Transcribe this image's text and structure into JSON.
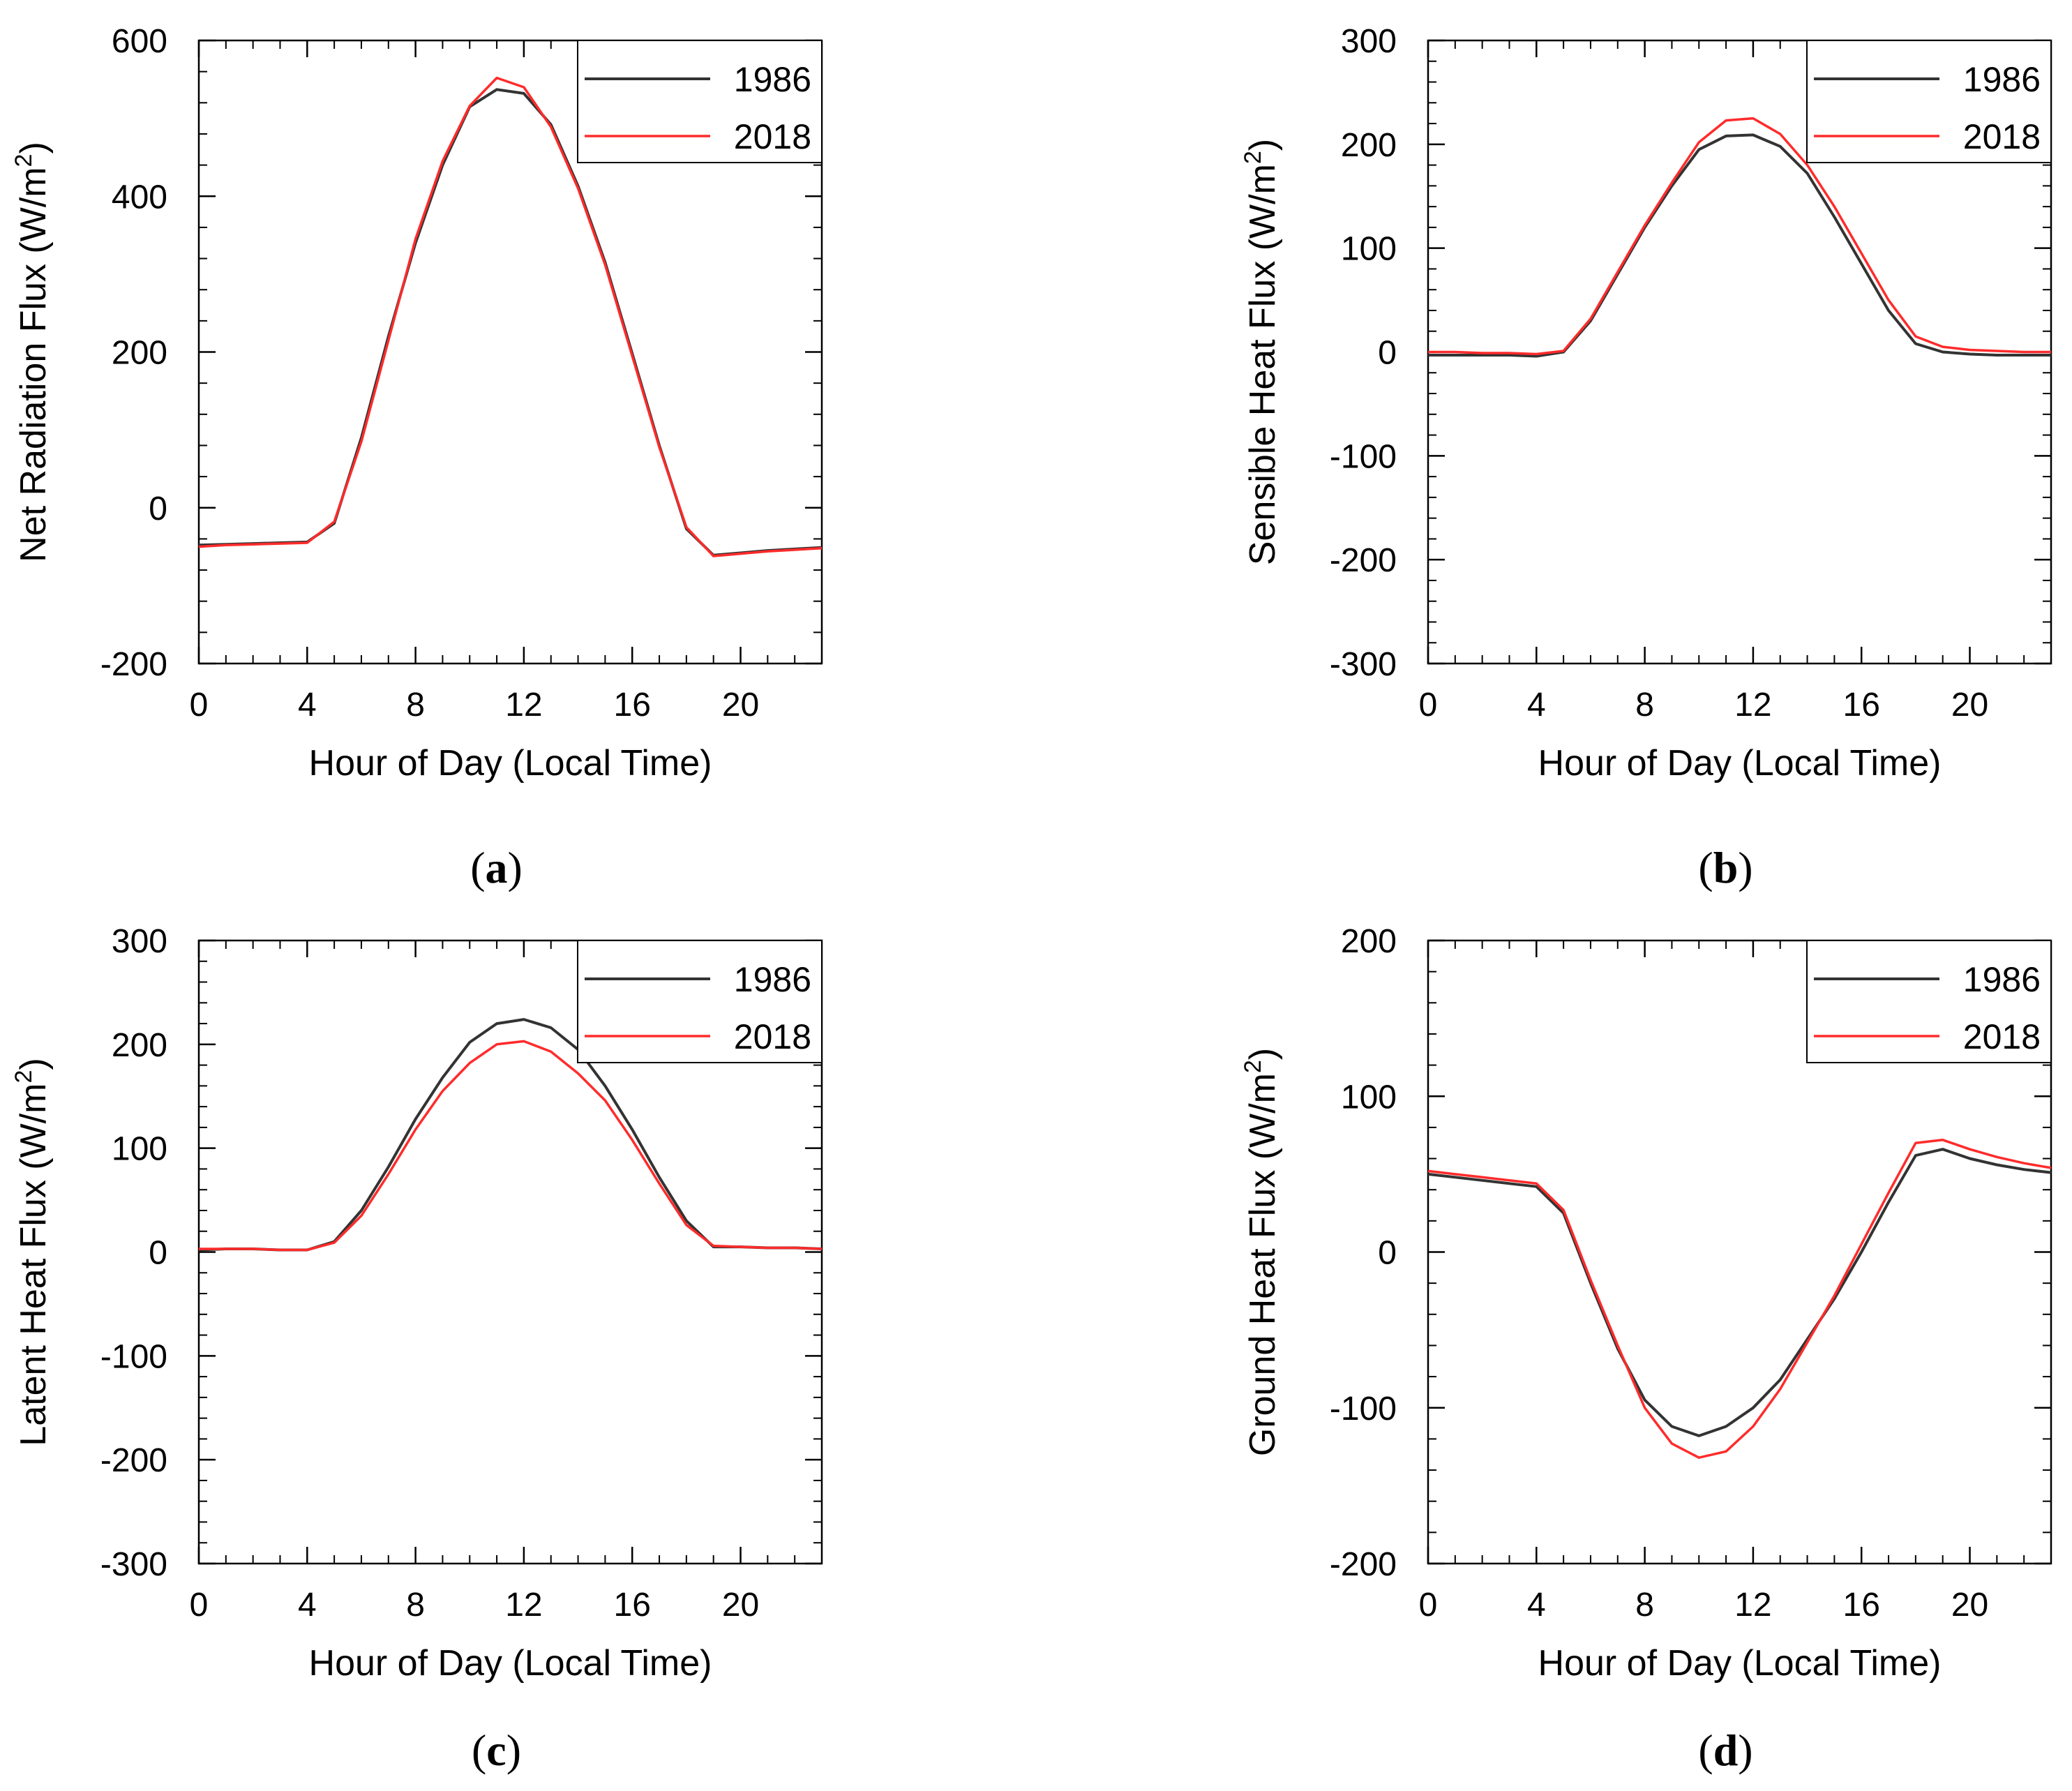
{
  "chart_data": [
    {
      "type": "line",
      "panel_label": "a",
      "title": "",
      "xlabel": "Hour of Day (Local Time)",
      "ylabel_main": "Net Radiation Flux (W/m",
      "ylabel_sup": "2",
      "ylabel_end": ")",
      "xlim": [
        0,
        23
      ],
      "ylim": [
        -200,
        600
      ],
      "xticks": [
        0,
        4,
        8,
        12,
        16,
        20
      ],
      "yticks": [
        -200,
        0,
        200,
        400,
        600
      ],
      "legend_position": "top-right",
      "x": [
        0,
        1,
        2,
        3,
        4,
        5,
        6,
        7,
        8,
        9,
        10,
        11,
        12,
        13,
        14,
        15,
        16,
        17,
        18,
        19,
        20,
        21,
        22,
        23
      ],
      "series": [
        {
          "name": "1986",
          "color": "#333333",
          "values": [
            -48,
            -47,
            -46,
            -45,
            -44,
            -20,
            90,
            220,
            340,
            440,
            515,
            537,
            532,
            492,
            413,
            315,
            198,
            80,
            -27,
            -61,
            -58,
            -55,
            -53,
            -51
          ]
        },
        {
          "name": "2018",
          "color": "#ff2b2b",
          "values": [
            -50,
            -48,
            -47,
            -46,
            -45,
            -18,
            85,
            215,
            345,
            445,
            516,
            552,
            540,
            489,
            410,
            312,
            195,
            78,
            -25,
            -62,
            -59,
            -56,
            -54,
            -52
          ]
        }
      ]
    },
    {
      "type": "line",
      "panel_label": "b",
      "title": "",
      "xlabel": "Hour of Day (Local Time)",
      "ylabel_main": "Sensible Heat Flux (W/m",
      "ylabel_sup": "2",
      "ylabel_end": ")",
      "xlim": [
        0,
        23
      ],
      "ylim": [
        -300,
        300
      ],
      "xticks": [
        0,
        4,
        8,
        12,
        16,
        20
      ],
      "yticks": [
        -300,
        -200,
        -100,
        0,
        100,
        200,
        300
      ],
      "legend_position": "top-right",
      "x": [
        0,
        1,
        2,
        3,
        4,
        5,
        6,
        7,
        8,
        9,
        10,
        11,
        12,
        13,
        14,
        15,
        16,
        17,
        18,
        19,
        20,
        21,
        22,
        23
      ],
      "series": [
        {
          "name": "1986",
          "color": "#333333",
          "values": [
            -3,
            -3,
            -3,
            -3,
            -4,
            0,
            30,
            75,
            120,
            160,
            195,
            208,
            209,
            198,
            172,
            130,
            85,
            40,
            8,
            0,
            -2,
            -3,
            -3,
            -3
          ]
        },
        {
          "name": "2018",
          "color": "#ff2b2b",
          "values": [
            0,
            0,
            -1,
            -1,
            -2,
            1,
            32,
            77,
            122,
            163,
            202,
            223,
            225,
            210,
            180,
            140,
            95,
            50,
            15,
            5,
            2,
            1,
            0,
            0
          ]
        }
      ]
    },
    {
      "type": "line",
      "panel_label": "c",
      "title": "",
      "xlabel": "Hour of Day (Local Time)",
      "ylabel_main": "Latent Heat Flux (W/m",
      "ylabel_sup": "2",
      "ylabel_end": ")",
      "xlim": [
        0,
        23
      ],
      "ylim": [
        -300,
        300
      ],
      "xticks": [
        0,
        4,
        8,
        12,
        16,
        20
      ],
      "yticks": [
        -300,
        -200,
        -100,
        0,
        100,
        200,
        300
      ],
      "legend_position": "top-right",
      "x": [
        0,
        1,
        2,
        3,
        4,
        5,
        6,
        7,
        8,
        9,
        10,
        11,
        12,
        13,
        14,
        15,
        16,
        17,
        18,
        19,
        20,
        21,
        22,
        23
      ],
      "series": [
        {
          "name": "1986",
          "color": "#333333",
          "values": [
            2,
            3,
            3,
            2,
            2,
            10,
            40,
            82,
            128,
            168,
            202,
            220,
            224,
            216,
            195,
            160,
            118,
            72,
            30,
            5,
            5,
            4,
            4,
            3
          ]
        },
        {
          "name": "2018",
          "color": "#ff2b2b",
          "values": [
            3,
            3,
            3,
            2,
            2,
            9,
            35,
            75,
            118,
            155,
            182,
            200,
            203,
            193,
            172,
            146,
            108,
            66,
            26,
            6,
            5,
            4,
            4,
            3
          ]
        }
      ]
    },
    {
      "type": "line",
      "panel_label": "d",
      "title": "",
      "xlabel": "Hour of Day (Local Time)",
      "ylabel_main": "Ground Heat Flux (W/m",
      "ylabel_sup": "2",
      "ylabel_end": ")",
      "xlim": [
        0,
        23
      ],
      "ylim": [
        -200,
        200
      ],
      "xticks": [
        0,
        4,
        8,
        12,
        16,
        20
      ],
      "yticks": [
        -200,
        -100,
        0,
        100,
        200
      ],
      "legend_position": "top-right",
      "x": [
        0,
        1,
        2,
        3,
        4,
        5,
        6,
        7,
        8,
        9,
        10,
        11,
        12,
        13,
        14,
        15,
        16,
        17,
        18,
        19,
        20,
        21,
        22,
        23
      ],
      "series": [
        {
          "name": "1986",
          "color": "#333333",
          "values": [
            50,
            48,
            46,
            44,
            42,
            25,
            -20,
            -62,
            -95,
            -112,
            -118,
            -112,
            -100,
            -82,
            -56,
            -30,
            0,
            32,
            62,
            66,
            60,
            56,
            53,
            51
          ]
        },
        {
          "name": "2018",
          "color": "#ff2b2b",
          "values": [
            52,
            50,
            48,
            46,
            44,
            27,
            -18,
            -60,
            -100,
            -123,
            -132,
            -128,
            -112,
            -88,
            -58,
            -28,
            5,
            38,
            70,
            72,
            66,
            61,
            57,
            54
          ]
        }
      ]
    }
  ]
}
